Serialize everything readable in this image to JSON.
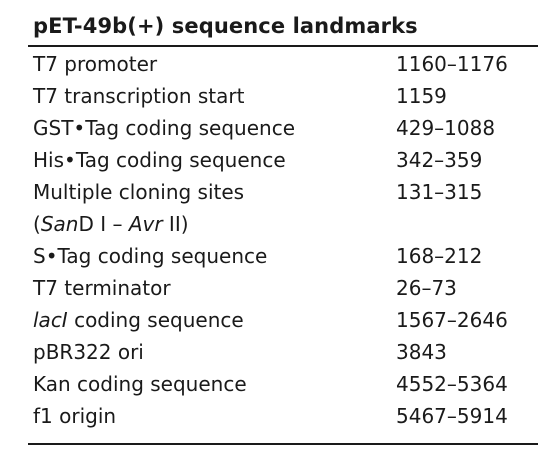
{
  "table": {
    "title": "pET-49b(+) sequence landmarks",
    "rows": [
      {
        "feature": "T7 promoter",
        "location": "1160–1176"
      },
      {
        "feature": "T7 transcription start",
        "location": "1159"
      },
      {
        "feature": "GST•Tag coding sequence",
        "location": "429–1088"
      },
      {
        "feature": "His•Tag coding sequence",
        "location": "342–359"
      },
      {
        "feature": "Multiple cloning sites",
        "location": "131–315"
      },
      {
        "feature_parts": {
          "open": "(",
          "san": "San",
          "d_one": "D I – ",
          "avr": "Avr",
          "two_close": " II)"
        },
        "location": ""
      },
      {
        "feature": "S•Tag coding sequence",
        "location": "168–212"
      },
      {
        "feature": "T7 terminator",
        "location": "26–73"
      },
      {
        "feature_parts": {
          "lac": "lacI",
          "rest": " coding sequence"
        },
        "location": "1567–2646"
      },
      {
        "feature": "pBR322 ori",
        "location": "3843"
      },
      {
        "feature": "Kan coding sequence",
        "location": "4552–5364"
      },
      {
        "feature": "f1 origin",
        "location": "5467–5914"
      }
    ]
  }
}
